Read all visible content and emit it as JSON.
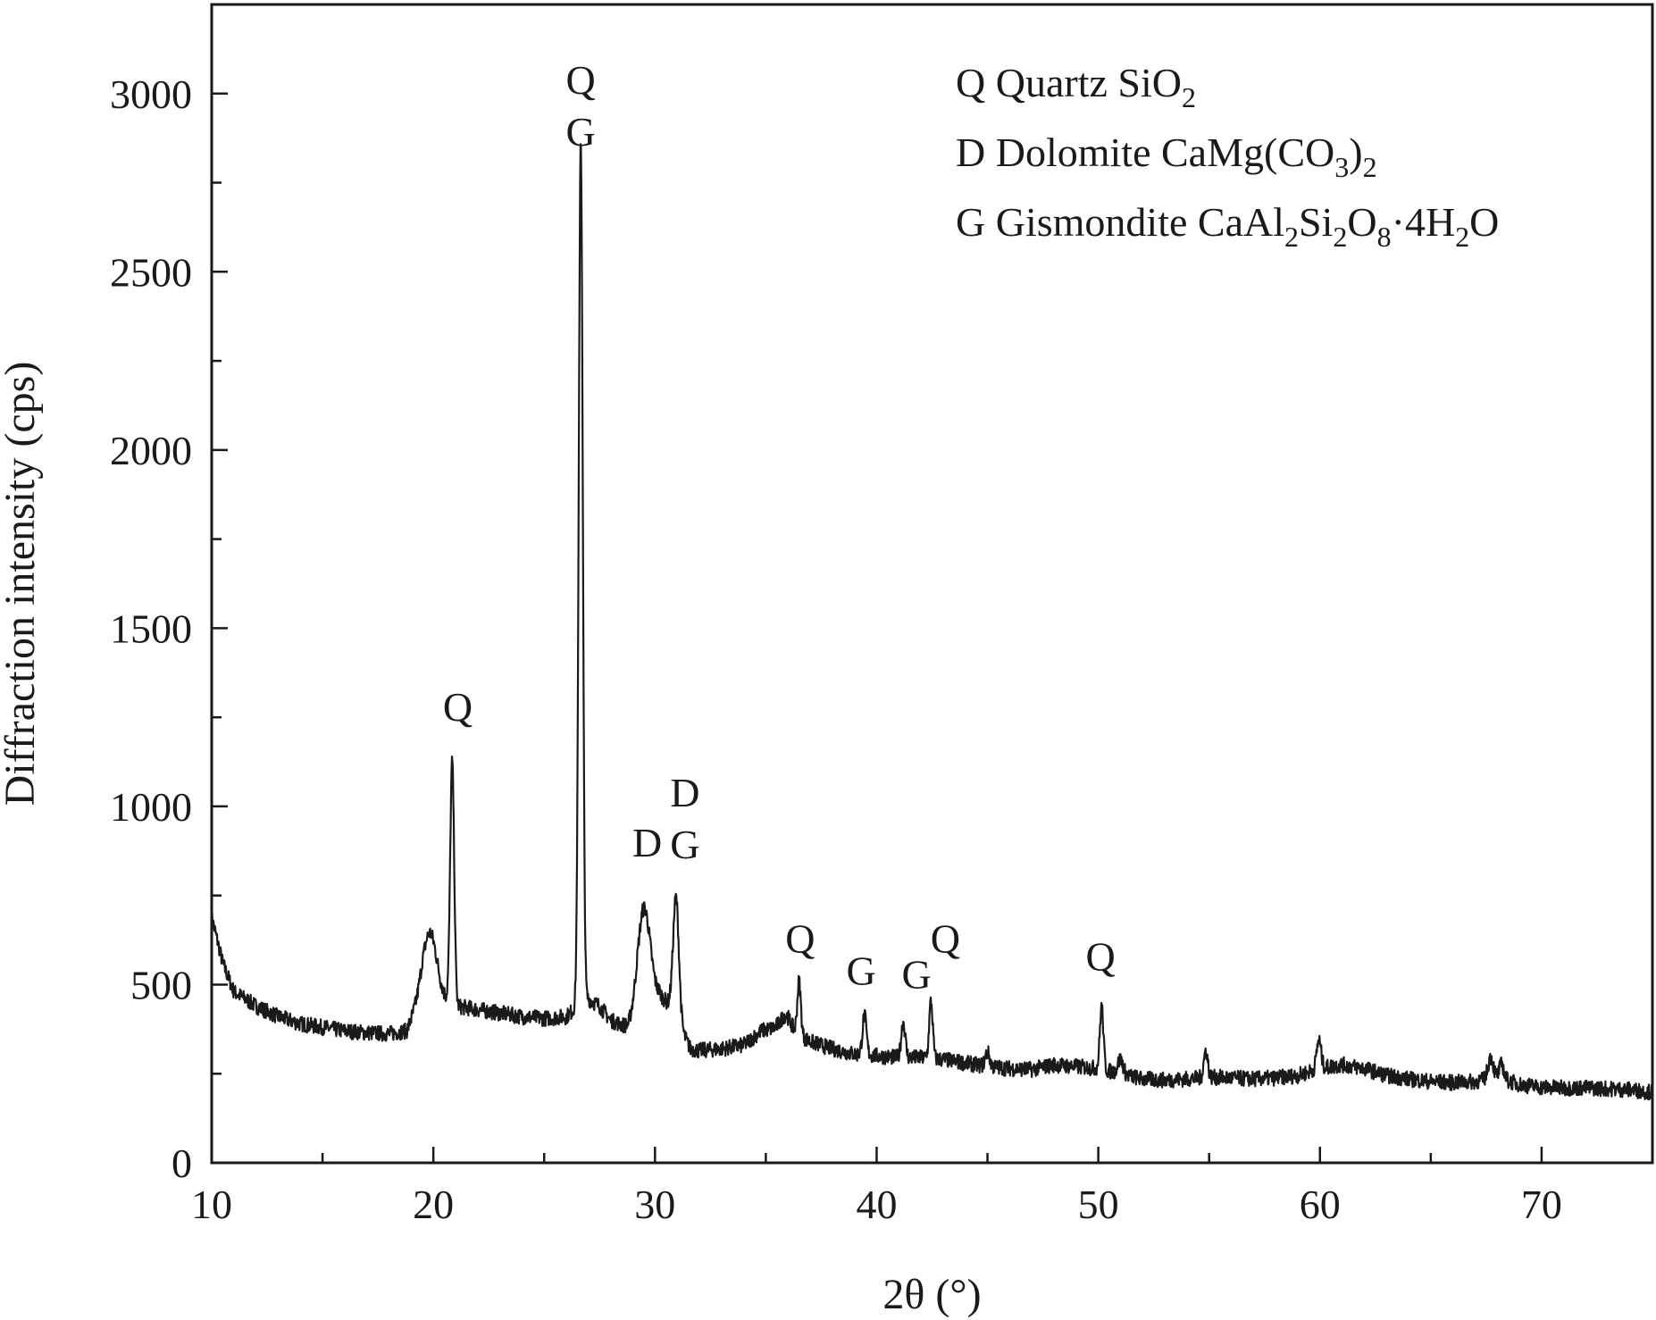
{
  "chart_data": {
    "type": "line",
    "title": "",
    "xlabel": "2θ (°)",
    "ylabel": "Diffraction intensity (cps)",
    "xlim": [
      10,
      75
    ],
    "ylim": [
      0,
      3250
    ],
    "x_ticks": [
      10,
      20,
      30,
      40,
      50,
      60,
      70
    ],
    "y_ticks": [
      0,
      500,
      1000,
      1500,
      2000,
      2500,
      3000
    ],
    "grid": false,
    "legend_position": "top-right",
    "legend": [
      {
        "symbol": "Q",
        "name": "Quartz",
        "formula": [
          {
            "t": "SiO"
          },
          {
            "t": "2",
            "sub": true
          }
        ]
      },
      {
        "symbol": "D",
        "name": "Dolomite",
        "formula": [
          {
            "t": "CaMg(CO"
          },
          {
            "t": "3",
            "sub": true
          },
          {
            "t": ")"
          },
          {
            "t": "2",
            "sub": true
          }
        ]
      },
      {
        "symbol": "G",
        "name": "Gismondite",
        "formula": [
          {
            "t": "CaAl"
          },
          {
            "t": "2",
            "sub": true
          },
          {
            "t": "Si"
          },
          {
            "t": "2",
            "sub": true
          },
          {
            "t": "O"
          },
          {
            "t": "8",
            "sub": true
          },
          {
            "t": "·4H"
          },
          {
            "t": "2",
            "sub": true
          },
          {
            "t": "O"
          }
        ]
      }
    ],
    "baseline": [
      [
        10.0,
        690
      ],
      [
        10.5,
        560
      ],
      [
        11.0,
        480
      ],
      [
        12.0,
        440
      ],
      [
        13.0,
        410
      ],
      [
        14.0,
        390
      ],
      [
        15.0,
        380
      ],
      [
        16.0,
        370
      ],
      [
        17.0,
        365
      ],
      [
        18.0,
        362
      ],
      [
        18.8,
        370
      ],
      [
        19.5,
        480
      ],
      [
        20.2,
        470
      ],
      [
        21.0,
        440
      ],
      [
        22.0,
        430
      ],
      [
        23.0,
        420
      ],
      [
        24.0,
        410
      ],
      [
        25.0,
        405
      ],
      [
        26.0,
        410
      ],
      [
        26.5,
        440
      ],
      [
        27.0,
        460
      ],
      [
        27.5,
        440
      ],
      [
        28.0,
        400
      ],
      [
        28.8,
        380
      ],
      [
        29.2,
        420
      ],
      [
        30.2,
        470
      ],
      [
        30.7,
        440
      ],
      [
        31.2,
        370
      ],
      [
        31.6,
        320
      ],
      [
        32.0,
        315
      ],
      [
        33.0,
        320
      ],
      [
        34.0,
        330
      ],
      [
        34.8,
        370
      ],
      [
        35.5,
        380
      ],
      [
        36.2,
        370
      ],
      [
        37.0,
        340
      ],
      [
        38.0,
        320
      ],
      [
        39.0,
        305
      ],
      [
        40.0,
        300
      ],
      [
        41.0,
        295
      ],
      [
        42.0,
        295
      ],
      [
        43.0,
        290
      ],
      [
        44.0,
        280
      ],
      [
        45.0,
        270
      ],
      [
        46.0,
        265
      ],
      [
        47.0,
        262
      ],
      [
        48.0,
        275
      ],
      [
        49.0,
        270
      ],
      [
        50.0,
        265
      ],
      [
        51.0,
        250
      ],
      [
        52.0,
        235
      ],
      [
        53.0,
        232
      ],
      [
        54.0,
        235
      ],
      [
        55.0,
        240
      ],
      [
        56.0,
        238
      ],
      [
        57.0,
        235
      ],
      [
        58.0,
        238
      ],
      [
        59.0,
        245
      ],
      [
        60.0,
        265
      ],
      [
        61.0,
        275
      ],
      [
        62.0,
        265
      ],
      [
        63.0,
        245
      ],
      [
        64.0,
        235
      ],
      [
        65.0,
        228
      ],
      [
        66.0,
        225
      ],
      [
        67.0,
        228
      ],
      [
        68.0,
        240
      ],
      [
        69.0,
        220
      ],
      [
        70.0,
        212
      ],
      [
        71.0,
        210
      ],
      [
        72.0,
        210
      ],
      [
        73.0,
        208
      ],
      [
        74.0,
        205
      ],
      [
        75.0,
        198
      ]
    ],
    "peaks": [
      {
        "x": 19.85,
        "height": 170,
        "width": 0.3
      },
      {
        "x": 20.85,
        "height": 680,
        "width": 0.09
      },
      {
        "x": 26.65,
        "height": 2430,
        "width": 0.09
      },
      {
        "x": 29.5,
        "height": 280,
        "width": 0.28
      },
      {
        "x": 30.95,
        "height": 340,
        "width": 0.13
      },
      {
        "x": 35.9,
        "height": 40,
        "width": 0.2
      },
      {
        "x": 36.5,
        "height": 150,
        "width": 0.08
      },
      {
        "x": 39.45,
        "height": 110,
        "width": 0.09
      },
      {
        "x": 41.2,
        "height": 100,
        "width": 0.09
      },
      {
        "x": 42.45,
        "height": 160,
        "width": 0.08
      },
      {
        "x": 45.0,
        "height": 40,
        "width": 0.1
      },
      {
        "x": 50.15,
        "height": 175,
        "width": 0.08
      },
      {
        "x": 51.0,
        "height": 40,
        "width": 0.12
      },
      {
        "x": 54.85,
        "height": 75,
        "width": 0.09
      },
      {
        "x": 59.95,
        "height": 80,
        "width": 0.1
      },
      {
        "x": 67.7,
        "height": 60,
        "width": 0.12
      },
      {
        "x": 68.2,
        "height": 40,
        "width": 0.1
      }
    ],
    "noise_amplitude": 22,
    "annotations": [
      {
        "x": 26.65,
        "y": 3000,
        "lines": [
          "Q",
          "G"
        ]
      },
      {
        "x": 21.1,
        "y": 1240,
        "lines": [
          "Q"
        ]
      },
      {
        "x": 29.65,
        "y": 860,
        "lines": [
          "D"
        ]
      },
      {
        "x": 31.35,
        "y": 1000,
        "lines": [
          "D",
          "G"
        ]
      },
      {
        "x": 36.55,
        "y": 590,
        "lines": [
          "Q"
        ]
      },
      {
        "x": 39.3,
        "y": 500,
        "lines": [
          "G"
        ]
      },
      {
        "x": 41.8,
        "y": 490,
        "lines": [
          "G"
        ]
      },
      {
        "x": 43.1,
        "y": 590,
        "lines": [
          "Q"
        ]
      },
      {
        "x": 50.1,
        "y": 540,
        "lines": [
          "Q"
        ]
      }
    ]
  }
}
